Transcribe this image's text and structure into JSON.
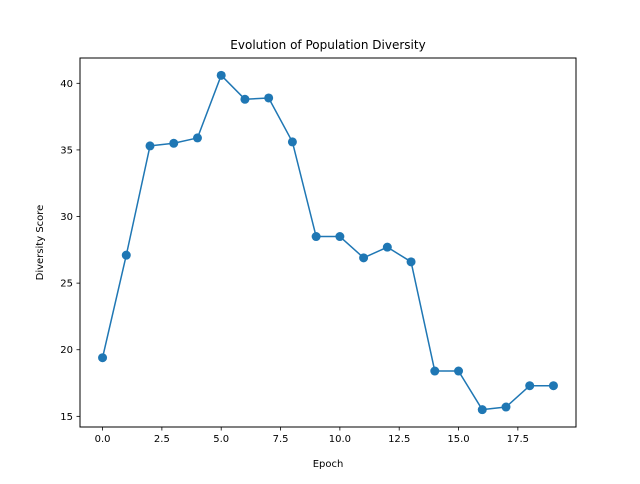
{
  "chart_data": {
    "type": "line",
    "title": "Evolution of Population Diversity",
    "xlabel": "Epoch",
    "ylabel": "Diversity Score",
    "xlim": [
      -0.95,
      19.95
    ],
    "ylim": [
      14.2,
      41.9
    ],
    "xticks": [
      0,
      2.5,
      5,
      7.5,
      10,
      12.5,
      15,
      17.5
    ],
    "xtick_labels": [
      "0.0",
      "2.5",
      "5.0",
      "7.5",
      "10.0",
      "12.5",
      "15.0",
      "17.5"
    ],
    "yticks": [
      15,
      20,
      25,
      30,
      35,
      40
    ],
    "ytick_labels": [
      "15",
      "20",
      "25",
      "30",
      "35",
      "40"
    ],
    "grid": false,
    "series": [
      {
        "color": "#1f77b4",
        "marker": "circle",
        "x": [
          0,
          1,
          2,
          3,
          4,
          5,
          6,
          7,
          8,
          9,
          10,
          11,
          12,
          13,
          14,
          15,
          16,
          17,
          18,
          19
        ],
        "y": [
          19.4,
          27.1,
          35.3,
          35.5,
          35.9,
          40.6,
          38.8,
          38.9,
          35.6,
          28.5,
          28.5,
          26.9,
          27.7,
          26.6,
          18.4,
          18.4,
          15.5,
          15.7,
          17.3,
          17.3
        ]
      }
    ]
  }
}
